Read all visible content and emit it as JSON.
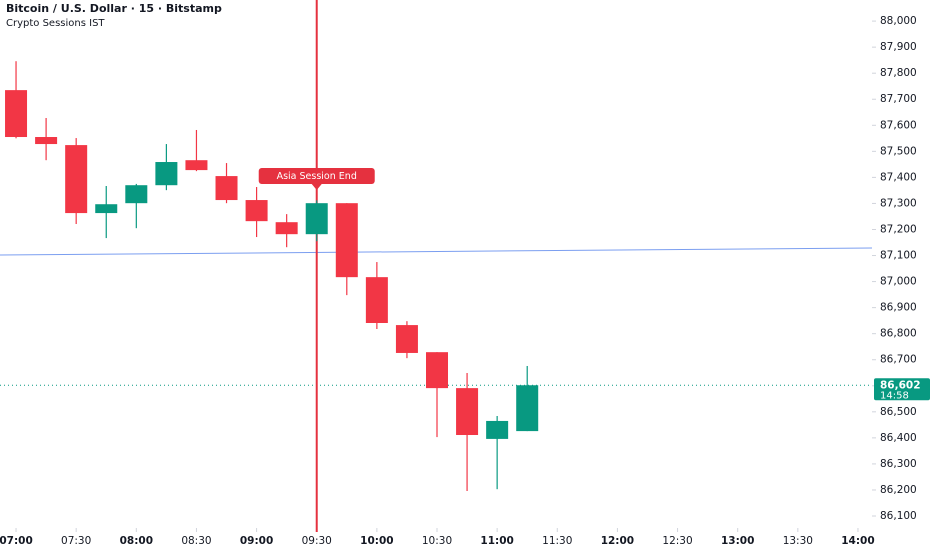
{
  "chart_data": {
    "type": "candlestick",
    "title": "Bitcoin / U.S. Dollar · 15 · Bitstamp",
    "subtitle": "Crypto Sessions IST",
    "x": [
      "07:00",
      "07:15",
      "07:30",
      "07:45",
      "08:00",
      "08:15",
      "08:30",
      "08:45",
      "09:00",
      "09:15",
      "09:30",
      "09:45",
      "10:00",
      "10:15",
      "10:30",
      "10:45",
      "11:00",
      "11:15"
    ],
    "open": [
      87735,
      87555,
      87524,
      87263,
      87301,
      87370,
      87466,
      87405,
      87313,
      87228,
      87182,
      87301,
      87017,
      86833,
      86729,
      86591,
      86396,
      86426
    ],
    "high": [
      87846,
      87628,
      87551,
      87367,
      87375,
      87528,
      87582,
      87455,
      87363,
      87259,
      87312,
      87301,
      87075,
      86848,
      86729,
      86649,
      86484,
      86676
    ],
    "low": [
      87550,
      87466,
      87221,
      87167,
      87205,
      87351,
      87424,
      87301,
      87171,
      87132,
      87155,
      86948,
      86818,
      86706,
      86403,
      86196,
      86203,
      86426
    ],
    "close": [
      87555,
      87528,
      87263,
      87297,
      87370,
      87459,
      87428,
      87313,
      87232,
      87182,
      87301,
      87017,
      86841,
      86726,
      86591,
      86411,
      86465,
      86602
    ],
    "up_color": "#089981",
    "down_color": "#f23645",
    "xlim": [
      "06:52",
      "14:07"
    ],
    "xticks": [
      "07:00",
      "07:30",
      "08:00",
      "08:30",
      "09:00",
      "09:30",
      "10:00",
      "10:30",
      "11:00",
      "11:30",
      "12:00",
      "12:30",
      "13:00",
      "13:30",
      "14:00"
    ],
    "ylim": [
      86054,
      88081
    ],
    "yticks": [
      {
        "value": 86100,
        "label": "86,100"
      },
      {
        "value": 86200,
        "label": "86,200"
      },
      {
        "value": 86300,
        "label": "86,300"
      },
      {
        "value": 86400,
        "label": "86,400"
      },
      {
        "value": 86500,
        "label": "86,500"
      },
      {
        "value": 86600,
        "label": "86,600"
      },
      {
        "value": 86700,
        "label": "86,700"
      },
      {
        "value": 86800,
        "label": "86,800"
      },
      {
        "value": 86900,
        "label": "86,900"
      },
      {
        "value": 87000,
        "label": "87,000"
      },
      {
        "value": 87100,
        "label": "87,100"
      },
      {
        "value": 87200,
        "label": "87,200"
      },
      {
        "value": 87300,
        "label": "87,300"
      },
      {
        "value": 87400,
        "label": "87,400"
      },
      {
        "value": 87500,
        "label": "87,500"
      },
      {
        "value": 87600,
        "label": "87,600"
      },
      {
        "value": 87700,
        "label": "87,700"
      },
      {
        "value": 87800,
        "label": "87,800"
      },
      {
        "value": 87900,
        "label": "87,900"
      },
      {
        "value": 88000,
        "label": "88,000"
      }
    ],
    "last_price": {
      "value": 86602,
      "label": "86,602"
    },
    "countdown": "14:58",
    "trend_line": {
      "y_start": 87102,
      "y_end": 87129,
      "color": "#7b9ef0"
    },
    "session_line": {
      "x": "09:30",
      "color": "#e5313f",
      "label": "Asia Session End"
    }
  }
}
